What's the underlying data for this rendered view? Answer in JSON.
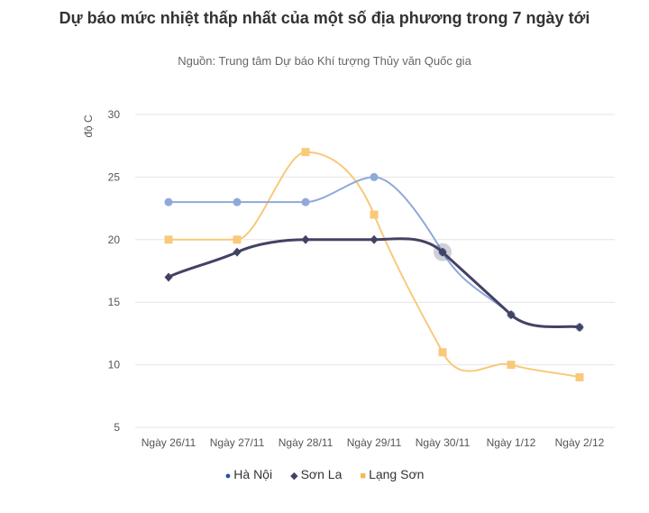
{
  "chart_data": {
    "type": "line",
    "title": "Dự báo mức nhiệt thấp nhất của một số địa phương trong 7 ngày tới",
    "subtitle": "Nguồn: Trung tâm Dự báo Khí tượng Thủy văn Quốc gia",
    "ylabel": "độ C",
    "xlabel": "",
    "ylim": [
      5,
      30
    ],
    "yticks": [
      5,
      10,
      15,
      20,
      25,
      30
    ],
    "grid": true,
    "legend": "bottom",
    "categories": [
      "Ngày 26/11",
      "Ngày 27/11",
      "Ngày 28/11",
      "Ngày 29/11",
      "Ngày 30/11",
      "Ngày 1/12",
      "Ngày 2/12"
    ],
    "series": [
      {
        "name": "Hà Nội",
        "values": [
          23,
          23,
          23,
          25,
          19,
          14,
          13
        ],
        "color": "#8fa9d8",
        "legend_color": "#1f4fa8",
        "marker": "circle"
      },
      {
        "name": "Sơn La",
        "values": [
          17,
          19,
          20,
          20,
          19,
          14,
          13
        ],
        "color": "#434265",
        "legend_color": "#434265",
        "marker": "diamond"
      },
      {
        "name": "Lạng Sơn",
        "values": [
          20,
          20,
          27,
          22,
          11,
          10,
          9
        ],
        "color": "#f9c97a",
        "legend_color": "#f7b84b",
        "marker": "square"
      }
    ]
  }
}
